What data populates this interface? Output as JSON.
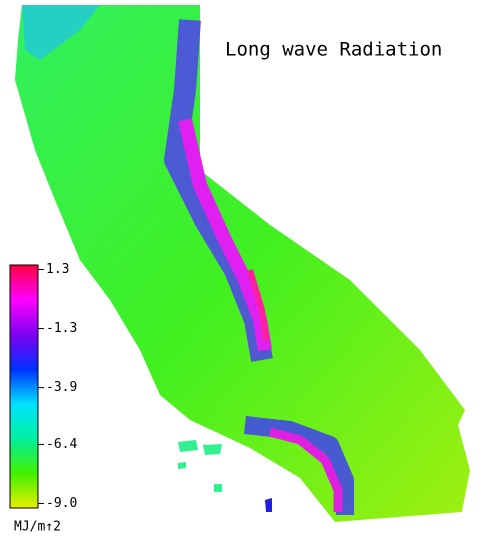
{
  "title": "Long wave Radiation",
  "colorbar": {
    "lim": [
      -9.2,
      1.5
    ],
    "ticks": [
      1.3,
      -1.3,
      -3.9,
      -6.4,
      {
        "value": -9,
        "label": "-9.0"
      }
    ],
    "colors": [
      "#e8f000",
      "#40f000",
      "#00f0a0",
      "#00e0ff",
      "#0030ff",
      "#8000f0",
      "#ff00ff",
      "#ff0040"
    ],
    "unit": "MJ/m↑2"
  }
}
